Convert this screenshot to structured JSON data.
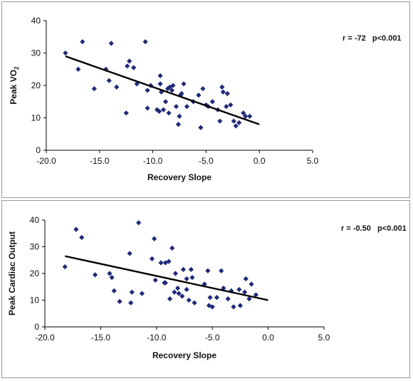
{
  "chart_data": [
    {
      "type": "scatter",
      "xlabel": "Recovery Slope",
      "ylabel": "Peak VO",
      "ylabel_subscript": "2",
      "annotation": "r = -72   p<0.001",
      "xlim": [
        -20,
        5
      ],
      "ylim": [
        0,
        40
      ],
      "xticks": [
        -20,
        -15,
        -10,
        -5,
        0,
        5
      ],
      "xtick_labels": [
        "-20.0",
        "-15.0",
        "-10.0",
        "-5.0",
        "0.0",
        "5.0"
      ],
      "yticks": [
        0,
        10,
        20,
        30,
        40
      ],
      "ytick_labels": [
        "0",
        "10",
        "20",
        "30",
        "40"
      ],
      "grid": false,
      "marker_color": "#1f2a78",
      "trendline": {
        "x": [
          -18.2,
          0
        ],
        "y": [
          29,
          8
        ]
      },
      "x": [
        -18.2,
        -17.0,
        -16.6,
        -15.5,
        -14.4,
        -14.1,
        -13.9,
        -13.4,
        -12.5,
        -12.4,
        -12.2,
        -11.8,
        -11.5,
        -10.7,
        -10.5,
        -10.5,
        -10.2,
        -9.6,
        -9.4,
        -9.3,
        -9.3,
        -9.2,
        -9.0,
        -8.8,
        -8.6,
        -8.5,
        -8.4,
        -8.2,
        -8.1,
        -7.8,
        -7.6,
        -7.5,
        -7.4,
        -7.3,
        -7.1,
        -6.8,
        -6.2,
        -5.7,
        -5.5,
        -5.3,
        -5.0,
        -4.8,
        -4.4,
        -3.9,
        -3.7,
        -3.5,
        -3.4,
        -3.1,
        -3.0,
        -2.7,
        -2.4,
        -2.2,
        -1.9,
        -1.5,
        -1.3,
        -0.9
      ],
      "y": [
        30,
        25,
        33.5,
        19,
        25,
        21.5,
        33,
        19.5,
        11.5,
        26,
        27.5,
        25.5,
        20.5,
        33.5,
        18.5,
        13,
        20,
        12.5,
        12,
        23,
        20.5,
        18,
        12.5,
        15,
        19,
        11.5,
        19.5,
        18.5,
        20,
        13.5,
        8,
        10.5,
        17,
        17.5,
        20.5,
        13.5,
        15,
        17,
        7,
        19,
        14,
        13.5,
        15,
        12.5,
        9,
        19.5,
        18,
        13.5,
        17.5,
        14,
        9,
        7.5,
        8.5,
        11.5,
        10.5,
        10.5
      ]
    },
    {
      "type": "scatter",
      "xlabel": "Recovery Slope",
      "ylabel": "Peak Cardiac Output",
      "annotation": "r = -0.50   p<0.001",
      "xlim": [
        -20,
        5
      ],
      "ylim": [
        0,
        40
      ],
      "xticks": [
        -20,
        -15,
        -10,
        -5,
        0,
        5
      ],
      "xtick_labels": [
        "-20.0",
        "-15.0",
        "-10.0",
        "-5.0",
        "0.0",
        "5.0"
      ],
      "yticks": [
        0,
        10,
        20,
        30,
        40
      ],
      "ytick_labels": [
        "0",
        "10",
        "20",
        "30",
        "40"
      ],
      "grid": false,
      "marker_color": "#1f2a78",
      "trendline": {
        "x": [
          -18.2,
          0
        ],
        "y": [
          26.5,
          10
        ]
      },
      "x": [
        -18.2,
        -17.2,
        -16.7,
        -15.5,
        -14.2,
        -14.0,
        -13.8,
        -13.3,
        -12.4,
        -12.3,
        -12.2,
        -11.6,
        -11.3,
        -10.4,
        -10.2,
        -10.1,
        -9.6,
        -9.3,
        -9.2,
        -9.2,
        -8.9,
        -8.8,
        -8.6,
        -8.4,
        -8.3,
        -8.1,
        -8.0,
        -7.7,
        -7.6,
        -7.3,
        -7.3,
        -7.1,
        -6.9,
        -6.8,
        -6.6,
        -5.7,
        -5.4,
        -5.3,
        -5.2,
        -5.0,
        -4.6,
        -4.2,
        -4.0,
        -3.6,
        -3.3,
        -3.1,
        -2.6,
        -2.5,
        -2.1,
        -2.0,
        -1.7,
        -1.5,
        -1.1
      ],
      "y": [
        22.5,
        36.5,
        33.5,
        19.5,
        20,
        18.5,
        13.5,
        9.5,
        27.5,
        9,
        13,
        39,
        12.5,
        25.5,
        33,
        17.5,
        24,
        16.5,
        16.5,
        24,
        24.5,
        10.5,
        29.5,
        13,
        20,
        14.5,
        12.5,
        11.5,
        21.5,
        14,
        18,
        10,
        21.5,
        18.5,
        9,
        16,
        21,
        8,
        11,
        7.5,
        11,
        21,
        14.5,
        10.5,
        13.5,
        7.5,
        14,
        8,
        13,
        18,
        10.5,
        16,
        12
      ]
    }
  ]
}
